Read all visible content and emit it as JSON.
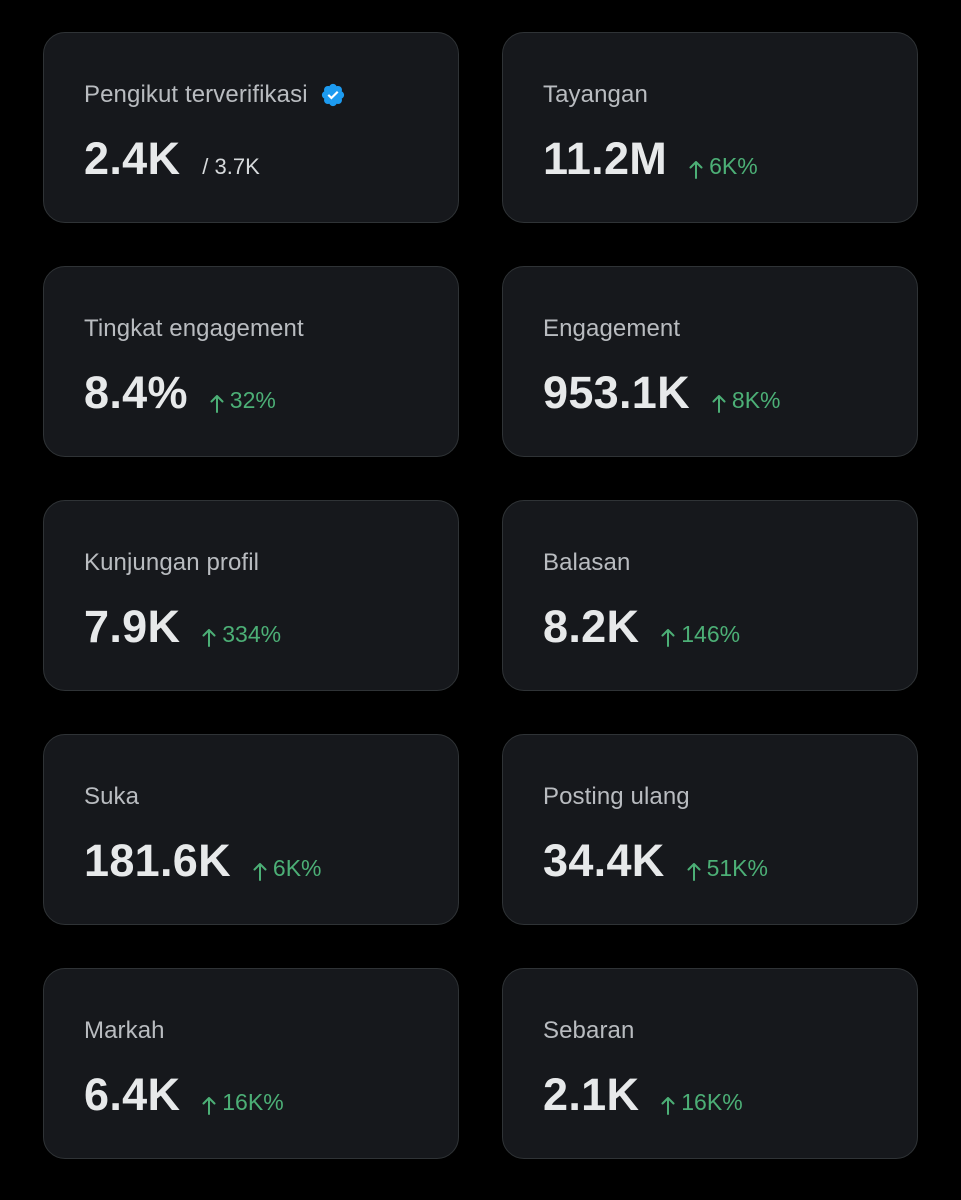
{
  "colors": {
    "background": "#000000",
    "card": "#16181c",
    "card_border": "#2f3336",
    "label": "#b9bcc0",
    "value": "#e7e9ea",
    "positive": "#4caf76",
    "verified": "#1d9bf0"
  },
  "metrics": [
    {
      "label": "Pengikut terverifikasi",
      "value": "2.4K",
      "total": "/ 3.7K",
      "verified_icon": "verified-badge-icon"
    },
    {
      "label": "Tayangan",
      "value": "11.2M",
      "change": "6K%",
      "change_icon": "arrow-up-icon"
    },
    {
      "label": "Tingkat engagement",
      "value": "8.4%",
      "change": "32%",
      "change_icon": "arrow-up-icon"
    },
    {
      "label": "Engagement",
      "value": "953.1K",
      "change": "8K%",
      "change_icon": "arrow-up-icon"
    },
    {
      "label": "Kunjungan profil",
      "value": "7.9K",
      "change": "334%",
      "change_icon": "arrow-up-icon"
    },
    {
      "label": "Balasan",
      "value": "8.2K",
      "change": "146%",
      "change_icon": "arrow-up-icon"
    },
    {
      "label": "Suka",
      "value": "181.6K",
      "change": "6K%",
      "change_icon": "arrow-up-icon"
    },
    {
      "label": "Posting ulang",
      "value": "34.4K",
      "change": "51K%",
      "change_icon": "arrow-up-icon"
    },
    {
      "label": "Markah",
      "value": "6.4K",
      "change": "16K%",
      "change_icon": "arrow-up-icon"
    },
    {
      "label": "Sebaran",
      "value": "2.1K",
      "change": "16K%",
      "change_icon": "arrow-up-icon"
    }
  ]
}
